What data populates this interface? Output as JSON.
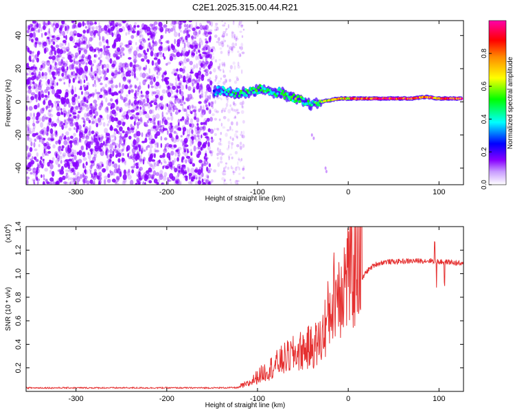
{
  "title": "C2E1.2025.315.00.44.R21",
  "colors": {
    "signal": "#8800ff",
    "snr_line": "#e53030",
    "axis": "#000000"
  },
  "chart_data": [
    {
      "type": "heatmap",
      "name": "spectrogram",
      "xlabel": "Height of straight line (km)",
      "ylabel": "Frequency (Hz)",
      "xlim": [
        -355,
        127
      ],
      "ylim": [
        -50,
        49
      ],
      "xticks": [
        -300,
        -200,
        -100,
        0,
        100
      ],
      "yticks": [
        -40,
        -20,
        0,
        20,
        40
      ],
      "colorbar": {
        "label": "Normalized spectral amplitude",
        "range": [
          0,
          1
        ],
        "ticks": [
          "0.0",
          "0.2",
          "0.4",
          "0.6",
          "0.8"
        ],
        "stops": [
          "#ffffff",
          "#8800ff",
          "#0000ff",
          "#00ffff",
          "#00ff00",
          "#ffff00",
          "#ff8800",
          "#ff0000",
          "#ff00aa"
        ]
      },
      "noise_region_km": [
        -355,
        -150
      ],
      "signal_track": [
        {
          "x": -148,
          "y": 6,
          "amp": 0.35
        },
        {
          "x": -140,
          "y": 7,
          "amp": 0.4
        },
        {
          "x": -130,
          "y": 6,
          "amp": 0.45
        },
        {
          "x": -120,
          "y": 5,
          "amp": 0.5
        },
        {
          "x": -110,
          "y": 6,
          "amp": 0.45
        },
        {
          "x": -100,
          "y": 7,
          "amp": 0.5
        },
        {
          "x": -92,
          "y": 8,
          "amp": 0.45
        },
        {
          "x": -85,
          "y": 5,
          "amp": 0.5
        },
        {
          "x": -75,
          "y": 6,
          "amp": 0.5
        },
        {
          "x": -65,
          "y": 3,
          "amp": 0.55
        },
        {
          "x": -55,
          "y": 1,
          "amp": 0.5
        },
        {
          "x": -45,
          "y": -1,
          "amp": 0.5
        },
        {
          "x": -38,
          "y": -2,
          "amp": 0.45
        },
        {
          "x": -30,
          "y": 0,
          "amp": 0.6
        },
        {
          "x": -20,
          "y": 1,
          "amp": 0.65
        },
        {
          "x": -10,
          "y": 2,
          "amp": 0.7
        },
        {
          "x": 0,
          "y": 2,
          "amp": 0.75
        },
        {
          "x": 10,
          "y": 2,
          "amp": 0.9
        },
        {
          "x": 30,
          "y": 2,
          "amp": 0.95
        },
        {
          "x": 50,
          "y": 2,
          "amp": 0.95
        },
        {
          "x": 70,
          "y": 2,
          "amp": 0.9
        },
        {
          "x": 85,
          "y": 3,
          "amp": 0.9
        },
        {
          "x": 100,
          "y": 2,
          "amp": 0.85
        },
        {
          "x": 115,
          "y": 2,
          "amp": 0.9
        },
        {
          "x": 125,
          "y": 2,
          "amp": 0.9
        }
      ]
    },
    {
      "type": "line",
      "name": "snr",
      "xlabel": "Height of straight line (km)",
      "ylabel": "SNR (10 * v/v)",
      "scale_label": "(x10",
      "scale_exp": "4",
      "scale_close": ")",
      "xlim": [
        -355,
        127
      ],
      "ylim": [
        0,
        14000
      ],
      "xticks": [
        -300,
        -200,
        -100,
        0,
        100
      ],
      "yticks": [
        "0.2",
        "0.4",
        "0.6",
        "0.8",
        "1.0",
        "1.2",
        "1.4"
      ],
      "series": [
        {
          "name": "SNR",
          "x": [
            -355,
            -300,
            -250,
            -200,
            -150,
            -120,
            -110,
            -100,
            -90,
            -80,
            -70,
            -60,
            -50,
            -40,
            -30,
            -25,
            -20,
            -15,
            -10,
            -5,
            0,
            5,
            10,
            15,
            20,
            30,
            40,
            60,
            80,
            95,
            100,
            110,
            120,
            127
          ],
          "y": [
            300,
            300,
            300,
            300,
            300,
            320,
            500,
            1000,
            1400,
            1800,
            2200,
            2500,
            2800,
            3000,
            3400,
            4500,
            5500,
            6500,
            7000,
            7500,
            7800,
            8000,
            8500,
            9500,
            10200,
            10800,
            11000,
            11050,
            11100,
            11100,
            11000,
            11000,
            10900,
            10800
          ]
        }
      ]
    }
  ]
}
